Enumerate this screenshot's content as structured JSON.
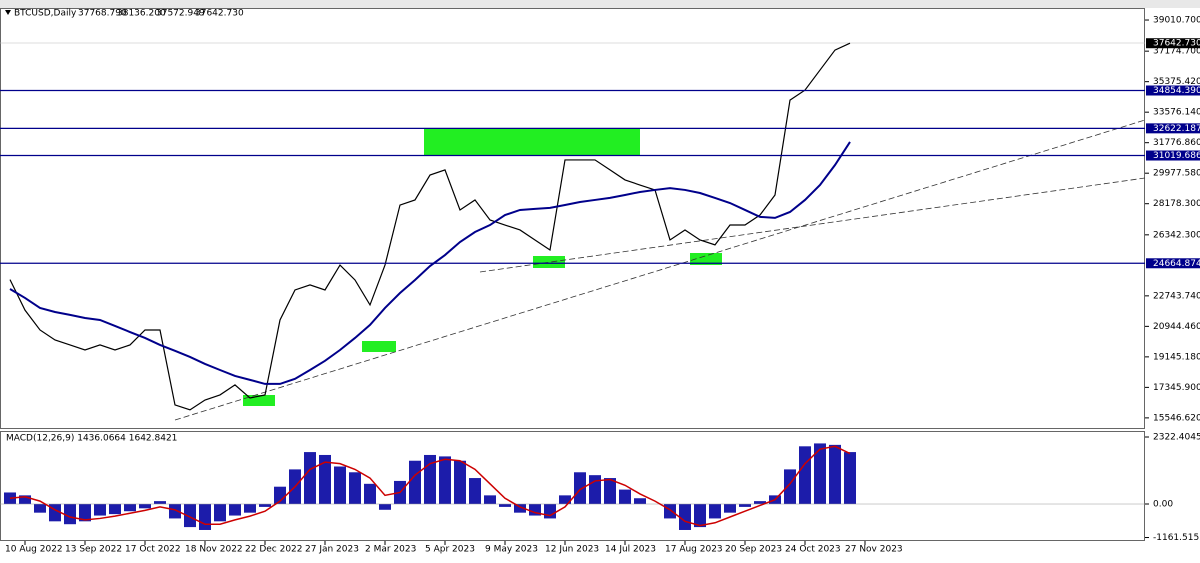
{
  "header": {
    "symbol": "BTCUSD,Daily",
    "open": "37768.790",
    "high": "38136.200",
    "low": "37572.949",
    "close": "37642.730"
  },
  "chart_data": [
    {
      "type": "line",
      "categories": [
        "",
        "10 Aug 2022",
        null,
        null,
        null,
        "13 Sep 2022",
        null,
        null,
        null,
        "17 Oct 2022",
        null,
        null,
        null,
        "18 Nov 2022",
        null,
        null,
        null,
        "22 Dec 2022",
        null,
        null,
        null,
        "27 Jan 2023",
        null,
        null,
        null,
        "2 Mar 2023",
        null,
        null,
        null,
        "5 Apr 2023",
        null,
        null,
        null,
        "9 May 2023",
        null,
        null,
        null,
        "12 Jun 2023",
        null,
        null,
        null,
        "14 Jul 2023",
        null,
        null,
        null,
        "17 Aug 2023",
        null,
        null,
        null,
        "20 Sep 2023",
        null,
        null,
        null,
        "24 Oct 2023",
        null,
        null,
        null,
        "27 Nov 2023"
      ],
      "series": [
        {
          "name": "BTCUSD",
          "color": "#000000",
          "values": [
            23700,
            21900,
            20730,
            20140,
            19850,
            19550,
            19850,
            19550,
            19850,
            20730,
            20730,
            16310,
            16020,
            16600,
            16900,
            17490,
            16720,
            16900,
            21320,
            23090,
            23390,
            23090,
            24560,
            23680,
            22210,
            24560,
            28100,
            28400,
            29870,
            30170,
            27810,
            28400,
            27220,
            26920,
            26630,
            26040,
            25450,
            30760,
            30760,
            30760,
            30170,
            29580,
            29280,
            28990,
            26040,
            26630,
            26040,
            25750,
            26920,
            26920,
            27510,
            28690,
            34290,
            34880,
            36060,
            37240,
            37642.73,
            null
          ]
        },
        {
          "name": "MA",
          "color": "#00008b",
          "values": [
            23150,
            22620,
            22030,
            21790,
            21620,
            21440,
            21320,
            20970,
            20610,
            20260,
            19850,
            19500,
            19140,
            18730,
            18370,
            18020,
            17790,
            17550,
            17550,
            17850,
            18370,
            18910,
            19550,
            20260,
            21030,
            22030,
            22910,
            23680,
            24500,
            25150,
            25920,
            26510,
            26920,
            27510,
            27810,
            27870,
            27930,
            28100,
            28280,
            28400,
            28520,
            28690,
            28870,
            28990,
            29100,
            28990,
            28810,
            28520,
            28220,
            27810,
            27400,
            27340,
            27690,
            28400,
            29280,
            30460,
            31820,
            null
          ]
        }
      ],
      "ylim": [
        14950,
        39720
      ],
      "yticks": [
        {
          "value": 39010.7,
          "label": "39010.700"
        },
        {
          "value": 37174.7,
          "label": "37174.700"
        },
        {
          "value": 35375.42,
          "label": "35375.420"
        },
        {
          "value": 33576.14,
          "label": "33576.140"
        },
        {
          "value": 31776.86,
          "label": "31776.860"
        },
        {
          "value": 29977.58,
          "label": "29977.580"
        },
        {
          "value": 28178.3,
          "label": "28178.300"
        },
        {
          "value": 26342.3,
          "label": "26342.300"
        },
        {
          "value": 22743.74,
          "label": "22743.740"
        },
        {
          "value": 20944.46,
          "label": "20944.460"
        },
        {
          "value": 19145.18,
          "label": "19145.180"
        },
        {
          "value": 17345.9,
          "label": "17345.900"
        },
        {
          "value": 15546.62,
          "label": "15546.620"
        }
      ],
      "levels": [
        {
          "value": 34854.39,
          "label": "34854.390"
        },
        {
          "value": 32622.187,
          "label": "32622.187"
        },
        {
          "value": 31019.686,
          "label": "31019.686"
        },
        {
          "value": 24664.874,
          "label": "24664.874"
        }
      ],
      "level_color": "#00008b",
      "last_price": {
        "value": 37642.73,
        "label": "37642.730"
      }
    },
    {
      "type": "macd",
      "title": "MACD(12,26,9) 1436.0664 1642.8421",
      "series": [
        {
          "name": "MACD",
          "color": "#1c1caa",
          "values": [
            400,
            300,
            -300,
            -600,
            -700,
            -600,
            -400,
            -350,
            -250,
            -150,
            100,
            -500,
            -800,
            -900,
            -600,
            -400,
            -300,
            -100,
            600,
            1200,
            1800,
            1700,
            1300,
            1100,
            700,
            -200,
            800,
            1500,
            1700,
            1650,
            1500,
            900,
            300,
            -100,
            -300,
            -400,
            -500,
            300,
            1100,
            1000,
            900,
            500,
            200,
            0,
            -500,
            -900,
            -800,
            -500,
            -300,
            -100,
            100,
            300,
            1200,
            2000,
            2100,
            2050,
            1800,
            null
          ]
        },
        {
          "name": "Signal",
          "color": "#cc0000",
          "values": [
            200,
            250,
            100,
            -200,
            -450,
            -550,
            -500,
            -420,
            -320,
            -220,
            -100,
            -200,
            -450,
            -700,
            -700,
            -550,
            -420,
            -250,
            100,
            600,
            1200,
            1450,
            1400,
            1200,
            900,
            300,
            400,
            1000,
            1400,
            1550,
            1500,
            1200,
            700,
            200,
            -100,
            -300,
            -400,
            -100,
            500,
            800,
            850,
            650,
            350,
            100,
            -200,
            -600,
            -750,
            -650,
            -450,
            -250,
            -50,
            150,
            700,
            1400,
            1900,
            2000,
            1750,
            null
          ]
        }
      ],
      "ylim": [
        -1282,
        2496
      ],
      "yticks": [
        {
          "value": 2322.4045,
          "label": "2322.4045"
        },
        {
          "value": 0,
          "label": "0.00"
        },
        {
          "value": -1161.5153,
          "label": "-1161.5153"
        }
      ]
    }
  ]
}
